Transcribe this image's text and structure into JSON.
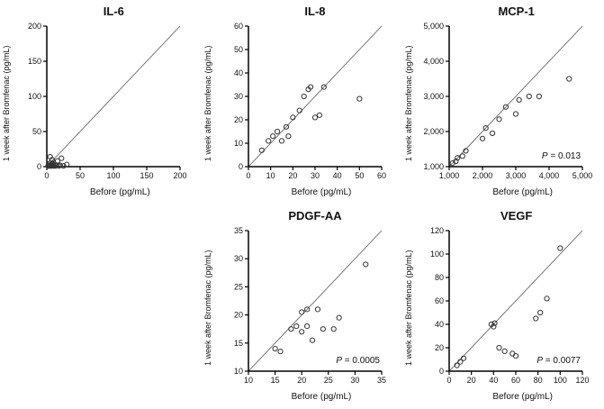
{
  "figure": {
    "background": "#ffffff",
    "axis_color": "#000000",
    "point_stroke": "#333333",
    "identity_line_color": "#555555"
  },
  "chart_data": [
    {
      "type": "scatter",
      "title": "IL-6",
      "xlabel": "Before (pg/mL)",
      "ylabel": "1 week after Bromfenac (pg/mL)",
      "xlim": [
        0,
        200
      ],
      "ylim": [
        0,
        200
      ],
      "xtick_values": [
        0,
        50,
        100,
        150,
        200
      ],
      "xtick_labels": [
        "0",
        "50",
        "100",
        "150",
        "200"
      ],
      "ytick_values": [
        0,
        50,
        100,
        150,
        200
      ],
      "ytick_labels": [
        "0",
        "50",
        "100",
        "150",
        "200"
      ],
      "identity_line": true,
      "p_label": "",
      "points": [
        [
          2,
          1
        ],
        [
          3,
          3
        ],
        [
          4,
          1
        ],
        [
          5,
          5
        ],
        [
          5,
          14
        ],
        [
          6,
          2
        ],
        [
          7,
          1
        ],
        [
          8,
          4
        ],
        [
          8,
          10
        ],
        [
          9,
          2
        ],
        [
          10,
          6
        ],
        [
          10,
          1
        ],
        [
          12,
          3
        ],
        [
          13,
          1
        ],
        [
          15,
          2
        ],
        [
          16,
          8
        ],
        [
          18,
          1
        ],
        [
          20,
          2
        ],
        [
          22,
          12
        ],
        [
          25,
          1
        ],
        [
          30,
          3
        ]
      ]
    },
    {
      "type": "scatter",
      "title": "IL-8",
      "xlabel": "Before (pg/mL)",
      "ylabel": "1 week after Bromfenac (pg/mL)",
      "xlim": [
        0,
        60
      ],
      "ylim": [
        0,
        60
      ],
      "xtick_values": [
        0,
        10,
        20,
        30,
        40,
        50,
        60
      ],
      "xtick_labels": [
        "0",
        "10",
        "20",
        "30",
        "40",
        "50",
        "60"
      ],
      "ytick_values": [
        0,
        10,
        20,
        30,
        40,
        50,
        60
      ],
      "ytick_labels": [
        "0",
        "10",
        "20",
        "30",
        "40",
        "50",
        "60"
      ],
      "identity_line": true,
      "p_label": "",
      "points": [
        [
          6,
          7
        ],
        [
          9,
          11
        ],
        [
          11,
          13
        ],
        [
          13,
          15
        ],
        [
          15,
          11
        ],
        [
          17,
          17
        ],
        [
          18,
          13
        ],
        [
          20,
          21
        ],
        [
          23,
          24
        ],
        [
          25,
          30
        ],
        [
          27,
          33
        ],
        [
          28,
          34
        ],
        [
          30,
          21
        ],
        [
          32,
          22
        ],
        [
          34,
          34
        ],
        [
          50,
          29
        ]
      ]
    },
    {
      "type": "scatter",
      "title": "MCP-1",
      "xlabel": "Before (pg/mL)",
      "ylabel": "1 week after Bromfenac (pg/mL)",
      "xlim": [
        1000,
        5000
      ],
      "ylim": [
        1000,
        5000
      ],
      "xtick_values": [
        1000,
        2000,
        3000,
        4000,
        5000
      ],
      "xtick_labels": [
        "1,000",
        "2,000",
        "3,000",
        "4,000",
        "5,000"
      ],
      "ytick_values": [
        1000,
        2000,
        3000,
        4000,
        5000
      ],
      "ytick_labels": [
        "1,000",
        "2,000",
        "3,000",
        "4,000",
        "5,000"
      ],
      "identity_line": true,
      "p_label": "P = 0.013",
      "points": [
        [
          1100,
          1100
        ],
        [
          1200,
          1150
        ],
        [
          1250,
          1250
        ],
        [
          1400,
          1300
        ],
        [
          1500,
          1450
        ],
        [
          2000,
          1800
        ],
        [
          2100,
          2100
        ],
        [
          2300,
          1950
        ],
        [
          2500,
          2350
        ],
        [
          2700,
          2700
        ],
        [
          3000,
          2500
        ],
        [
          3100,
          2900
        ],
        [
          3400,
          3000
        ],
        [
          3700,
          3000
        ],
        [
          4600,
          3500
        ]
      ]
    },
    {
      "type": "scatter",
      "title": "PDGF-AA",
      "xlabel": "Before (pg/mL)",
      "ylabel": "1 week after Bromfenac (pg/mL)",
      "xlim": [
        10,
        35
      ],
      "ylim": [
        10,
        35
      ],
      "xtick_values": [
        10,
        15,
        20,
        25,
        30,
        35
      ],
      "xtick_labels": [
        "10",
        "15",
        "20",
        "25",
        "30",
        "35"
      ],
      "ytick_values": [
        10,
        15,
        20,
        25,
        30,
        35
      ],
      "ytick_labels": [
        "10",
        "15",
        "20",
        "25",
        "30",
        "35"
      ],
      "identity_line": true,
      "p_label": "P = 0.0005",
      "points": [
        [
          15,
          14
        ],
        [
          16,
          13.5
        ],
        [
          18,
          17.5
        ],
        [
          19,
          18
        ],
        [
          20,
          20.5
        ],
        [
          20,
          17
        ],
        [
          21,
          21
        ],
        [
          21,
          18
        ],
        [
          22,
          15.5
        ],
        [
          23,
          21
        ],
        [
          24,
          17.5
        ],
        [
          26,
          17.5
        ],
        [
          27,
          19.5
        ],
        [
          32,
          29
        ]
      ]
    },
    {
      "type": "scatter",
      "title": "VEGF",
      "xlabel": "Before (pg/mL)",
      "ylabel": "1 week after Bromfenac (pg/mL)",
      "xlim": [
        0,
        120
      ],
      "ylim": [
        0,
        120
      ],
      "xtick_values": [
        0,
        20,
        40,
        60,
        80,
        100,
        120
      ],
      "xtick_labels": [
        "0",
        "20",
        "40",
        "60",
        "80",
        "100",
        "120"
      ],
      "ytick_values": [
        0,
        20,
        40,
        60,
        80,
        100,
        120
      ],
      "ytick_labels": [
        "0",
        "20",
        "40",
        "60",
        "80",
        "100",
        "120"
      ],
      "identity_line": true,
      "p_label": "P = 0.0077",
      "points": [
        [
          7,
          5
        ],
        [
          10,
          8
        ],
        [
          13,
          11
        ],
        [
          38,
          40
        ],
        [
          40,
          38
        ],
        [
          41,
          41
        ],
        [
          45,
          20
        ],
        [
          50,
          17
        ],
        [
          57,
          15
        ],
        [
          60,
          13
        ],
        [
          78,
          45
        ],
        [
          82,
          50
        ],
        [
          88,
          62
        ],
        [
          100,
          105
        ]
      ]
    }
  ]
}
